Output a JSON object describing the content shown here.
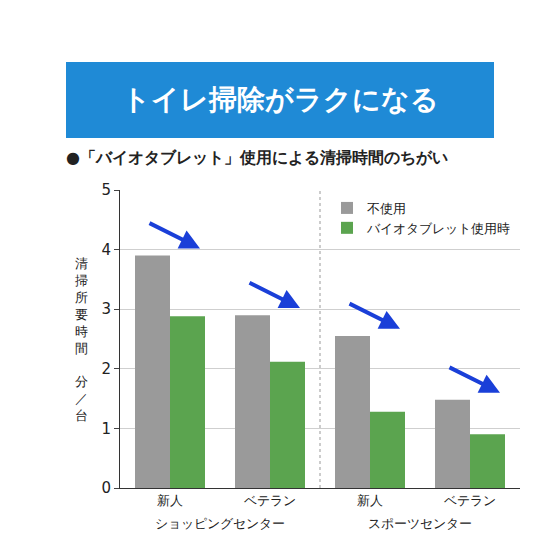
{
  "header": "トイレ掃除がラクになる",
  "chart_data": {
    "type": "bar",
    "title": "●「バイオタブレット」使用による清掃時間のちがい",
    "y_label": "清掃所要時間 分／台",
    "categories": [
      "新人",
      "ベテラン",
      "新人",
      "ベテラン"
    ],
    "groups": [
      "ショッピングセンター",
      "スポーツセンター"
    ],
    "series": [
      {
        "name": "不使用",
        "color": "#9a9a9a",
        "values": [
          3.9,
          2.9,
          2.55,
          1.48
        ]
      },
      {
        "name": "バイオタブレット使用時",
        "color": "#5ba44f",
        "values": [
          2.88,
          2.12,
          1.28,
          0.9
        ]
      }
    ],
    "ylim": [
      0,
      5
    ],
    "yticks": [
      0,
      1,
      2,
      3,
      4,
      5
    ],
    "grid": true,
    "legend": "upper right"
  }
}
